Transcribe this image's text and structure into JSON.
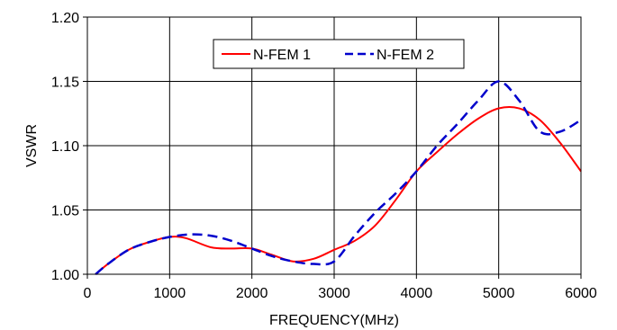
{
  "chart_data": {
    "type": "line",
    "title": "",
    "xlabel": "FREQUENCY(MHz)",
    "ylabel": "VSWR",
    "xlim": [
      0,
      6000
    ],
    "ylim": [
      1.0,
      1.2
    ],
    "x_ticks": [
      "0",
      "1000",
      "2000",
      "3000",
      "4000",
      "5000",
      "6000"
    ],
    "y_ticks": [
      "1.00",
      "1.05",
      "1.10",
      "1.15",
      "1.20"
    ],
    "grid": true,
    "legend_position": "top-center",
    "series": [
      {
        "name": "N-FEM 1",
        "color": "#ff0000",
        "dash": "solid",
        "points": [
          [
            100,
            1.0
          ],
          [
            250,
            1.008
          ],
          [
            500,
            1.019
          ],
          [
            750,
            1.025
          ],
          [
            1000,
            1.029
          ],
          [
            1200,
            1.028
          ],
          [
            1500,
            1.021
          ],
          [
            1750,
            1.02
          ],
          [
            2000,
            1.02
          ],
          [
            2250,
            1.015
          ],
          [
            2500,
            1.01
          ],
          [
            2750,
            1.012
          ],
          [
            3000,
            1.019
          ],
          [
            3250,
            1.026
          ],
          [
            3500,
            1.038
          ],
          [
            3750,
            1.058
          ],
          [
            4000,
            1.08
          ],
          [
            4250,
            1.095
          ],
          [
            4500,
            1.109
          ],
          [
            4750,
            1.121
          ],
          [
            5000,
            1.129
          ],
          [
            5250,
            1.129
          ],
          [
            5500,
            1.12
          ],
          [
            5750,
            1.102
          ],
          [
            6000,
            1.08
          ]
        ]
      },
      {
        "name": "N-FEM 2",
        "color": "#0000cc",
        "dash": "dashed",
        "points": [
          [
            100,
            1.0
          ],
          [
            250,
            1.008
          ],
          [
            500,
            1.019
          ],
          [
            750,
            1.025
          ],
          [
            1000,
            1.029
          ],
          [
            1250,
            1.031
          ],
          [
            1500,
            1.03
          ],
          [
            1750,
            1.026
          ],
          [
            2000,
            1.02
          ],
          [
            2250,
            1.014
          ],
          [
            2500,
            1.01
          ],
          [
            2750,
            1.008
          ],
          [
            3000,
            1.01
          ],
          [
            3250,
            1.03
          ],
          [
            3500,
            1.048
          ],
          [
            3750,
            1.063
          ],
          [
            4000,
            1.08
          ],
          [
            4250,
            1.1
          ],
          [
            4500,
            1.117
          ],
          [
            4750,
            1.135
          ],
          [
            5000,
            1.15
          ],
          [
            5250,
            1.135
          ],
          [
            5500,
            1.111
          ],
          [
            5750,
            1.111
          ],
          [
            6000,
            1.12
          ]
        ]
      }
    ]
  }
}
